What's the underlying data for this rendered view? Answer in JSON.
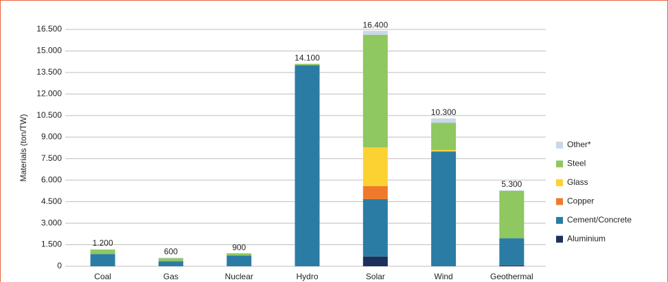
{
  "chart_data": {
    "type": "stacked_bar",
    "y_label": "Materials (ton/TW)",
    "categories": [
      "Coal",
      "Gas",
      "Nuclear",
      "Hydro",
      "Solar",
      "Wind",
      "Geothermal"
    ],
    "series": [
      {
        "name": "Aluminium",
        "color": "#1f2f5c",
        "values": [
          0,
          0,
          0,
          0,
          680,
          0,
          50
        ]
      },
      {
        "name": "Cement/Concrete",
        "color": "#2b7ca4",
        "values": [
          850,
          350,
          750,
          14000,
          4000,
          8000,
          1900
        ]
      },
      {
        "name": "Copper",
        "color": "#f07a2a",
        "values": [
          0,
          0,
          0,
          0,
          900,
          0,
          0
        ]
      },
      {
        "name": "Glass",
        "color": "#fcd232",
        "values": [
          0,
          0,
          0,
          0,
          2700,
          100,
          0
        ]
      },
      {
        "name": "Steel",
        "color": "#8fc760",
        "values": [
          300,
          200,
          150,
          100,
          7850,
          1900,
          3300
        ]
      },
      {
        "name": "Other*",
        "color": "#c9d8ea",
        "values": [
          50,
          50,
          0,
          0,
          270,
          300,
          50
        ]
      }
    ],
    "totals": [
      {
        "value": 1200,
        "label": "1.200"
      },
      {
        "value": 600,
        "label": "600"
      },
      {
        "value": 900,
        "label": "900"
      },
      {
        "value": 14100,
        "label": "14.100"
      },
      {
        "value": 16400,
        "label": "16.400"
      },
      {
        "value": 10300,
        "label": "10.300"
      },
      {
        "value": 5300,
        "label": "5.300"
      }
    ],
    "ylim": [
      0,
      16500
    ],
    "yticks": [
      0,
      {
        "value": 1500,
        "label": "1.500"
      },
      {
        "value": 3000,
        "label": "3.000"
      },
      {
        "value": 4500,
        "label": "4.500"
      },
      {
        "value": 6000,
        "label": "6.000"
      },
      {
        "value": 7500,
        "label": "7.500"
      },
      {
        "value": 9000,
        "label": "9.000"
      },
      {
        "value": 10500,
        "label": "10.500"
      },
      {
        "value": 12000,
        "label": "12.000"
      },
      {
        "value": 13500,
        "label": "13.500"
      },
      {
        "value": 15000,
        "label": "15.000"
      },
      {
        "value": 16500,
        "label": "16.500"
      }
    ],
    "grid": true
  }
}
